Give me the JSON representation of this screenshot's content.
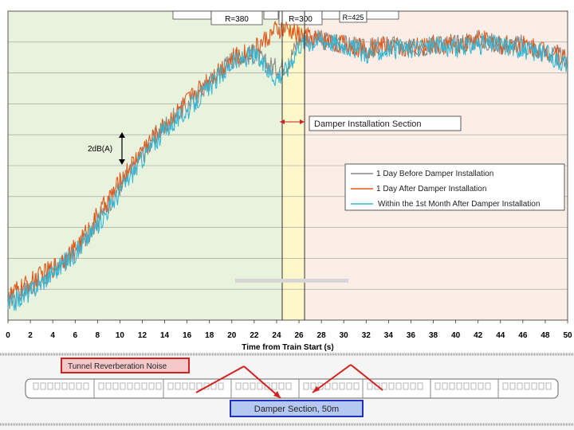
{
  "chart_data": {
    "type": "line",
    "xlabel": "Time from Train Start (s)",
    "xlim": [
      0,
      50
    ],
    "x_ticks": [
      "0",
      "2",
      "4",
      "6",
      "8",
      "10",
      "12",
      "14",
      "16",
      "18",
      "20",
      "22",
      "24",
      "26",
      "28",
      "30",
      "32",
      "34",
      "36",
      "38",
      "40",
      "42",
      "44",
      "46",
      "48",
      "50"
    ],
    "grid": true,
    "legend_position": "right-middle",
    "series": [
      {
        "name": "1 Day Before Damper Installation",
        "color": "#8a8a8a",
        "x": [
          0,
          2,
          4,
          6,
          8,
          10,
          12,
          14,
          16,
          18,
          20,
          22,
          23,
          24,
          25,
          26,
          28,
          30,
          32,
          34,
          36,
          38,
          40,
          42,
          44,
          46,
          48,
          50
        ],
        "y": [
          4,
          7,
          10,
          14,
          21,
          28,
          35,
          41,
          45,
          50,
          55,
          56,
          54,
          53,
          54,
          59,
          59,
          58,
          57,
          58,
          57,
          58,
          58,
          59,
          58,
          58,
          56,
          55
        ]
      },
      {
        "name": "1 Day After Damper Installation",
        "color": "#e05a1e",
        "x": [
          0,
          2,
          4,
          6,
          8,
          10,
          12,
          14,
          16,
          18,
          20,
          22,
          23,
          24,
          25,
          26,
          28,
          30,
          32,
          34,
          36,
          38,
          40,
          42,
          44,
          46,
          48,
          50
        ],
        "y": [
          5,
          8,
          11,
          15,
          22,
          29,
          36,
          41,
          46,
          51,
          55,
          57,
          59,
          61,
          61,
          60,
          59,
          58,
          57,
          58,
          57,
          58,
          58,
          59,
          58,
          58,
          57,
          55
        ]
      },
      {
        "name": "Within the 1st Month After Damper Installation",
        "color": "#33b7d6",
        "x": [
          0,
          2,
          4,
          6,
          8,
          10,
          12,
          14,
          16,
          18,
          20,
          22,
          23,
          24,
          25,
          26,
          28,
          30,
          32,
          34,
          36,
          38,
          40,
          42,
          44,
          46,
          48,
          50
        ],
        "y": [
          3,
          6,
          10,
          14,
          20,
          27,
          34,
          40,
          44,
          49,
          54,
          56,
          53,
          51,
          53,
          58,
          59,
          58,
          56,
          57,
          57,
          58,
          57,
          58,
          58,
          57,
          56,
          54
        ]
      }
    ],
    "regions": [
      {
        "name": "acceleration",
        "x": [
          0,
          24.5
        ],
        "color": "#e9f2dc"
      },
      {
        "name": "damper-section",
        "x": [
          24.5,
          26.5
        ],
        "color": "#fdf7c9"
      },
      {
        "name": "post",
        "x": [
          26.5,
          50
        ],
        "color": "#fbeee6"
      }
    ],
    "annotations": {
      "scale_label": "2dB(A)",
      "damper_section_label": "Damper Installation Section",
      "curve_labels": [
        "R=380",
        "R=300",
        "R=425"
      ]
    }
  },
  "bottom_panel": {
    "reverberation_label": "Tunnel Reverberation Noise",
    "damper_label": "Damper Section, 50m"
  }
}
